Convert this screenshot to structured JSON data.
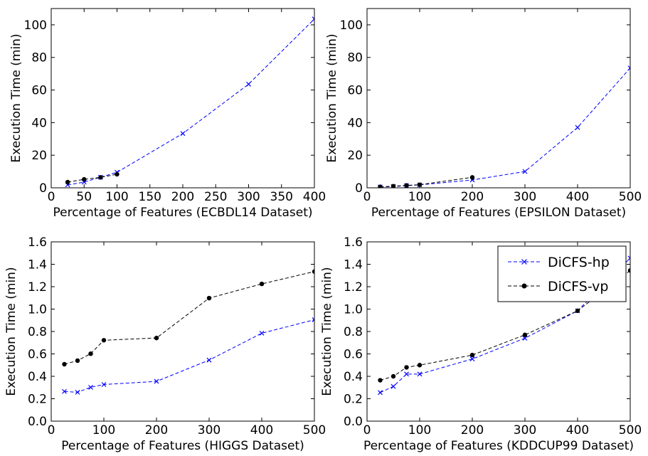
{
  "chart_data": [
    {
      "type": "line",
      "xlabel": "Percentage of Features (ECBDL14 Dataset)",
      "ylabel": "Execution Time (min)",
      "xlim": [
        0,
        400
      ],
      "ylim": [
        0,
        110
      ],
      "xticks": [
        0,
        50,
        100,
        150,
        200,
        250,
        300,
        350,
        400
      ],
      "yticks": [
        0,
        20,
        40,
        60,
        80,
        100
      ],
      "xtick_labels": [
        "0",
        "50",
        "100",
        "150",
        "200",
        "250",
        "300",
        "350",
        "400"
      ],
      "ytick_labels": [
        "0",
        "20",
        "40",
        "60",
        "80",
        "100"
      ],
      "grid": false,
      "series": [
        {
          "name": "DiCFS-hp",
          "color": "#0000ff",
          "marker": "x",
          "line": "dashed",
          "x": [
            25,
            50,
            75,
            100,
            200,
            300,
            400
          ],
          "y": [
            1.8,
            3.5,
            6.5,
            9.5,
            33.3,
            63.6,
            103.6
          ]
        },
        {
          "name": "DiCFS-vp",
          "color": "#000000",
          "marker": "circle",
          "line": "dashed",
          "x": [
            25,
            50,
            75,
            100
          ],
          "y": [
            3.5,
            5.2,
            6.4,
            8.3
          ]
        }
      ]
    },
    {
      "type": "line",
      "xlabel": "Percentage of Features (EPSILON Dataset)",
      "ylabel": "Execution Time (min)",
      "xlim": [
        0,
        500
      ],
      "ylim": [
        0,
        110
      ],
      "xticks": [
        0,
        100,
        200,
        300,
        400,
        500
      ],
      "yticks": [
        0,
        20,
        40,
        60,
        80,
        100
      ],
      "xtick_labels": [
        "0",
        "100",
        "200",
        "300",
        "400",
        "500"
      ],
      "ytick_labels": [
        "0",
        "20",
        "40",
        "60",
        "80",
        "100"
      ],
      "grid": false,
      "series": [
        {
          "name": "DiCFS-hp",
          "color": "#0000ff",
          "marker": "x",
          "line": "dashed",
          "x": [
            25,
            50,
            75,
            100,
            200,
            300,
            400,
            500
          ],
          "y": [
            0.5,
            0.8,
            1.3,
            1.8,
            4.8,
            10.0,
            37.0,
            73.5
          ]
        },
        {
          "name": "DiCFS-vp",
          "color": "#000000",
          "marker": "circle",
          "line": "dashed",
          "x": [
            25,
            50,
            75,
            100,
            200
          ],
          "y": [
            0.6,
            1.0,
            1.5,
            1.9,
            6.4
          ]
        }
      ]
    },
    {
      "type": "line",
      "xlabel": "Percentage of Features (HIGGS Dataset)",
      "ylabel": "Execution Time (min)",
      "xlim": [
        0,
        500
      ],
      "ylim": [
        0,
        1.6
      ],
      "xticks": [
        0,
        100,
        200,
        300,
        400,
        500
      ],
      "yticks": [
        0,
        0.2,
        0.4,
        0.6,
        0.8,
        1.0,
        1.2,
        1.4,
        1.6
      ],
      "xtick_labels": [
        "0",
        "100",
        "200",
        "300",
        "400",
        "500"
      ],
      "ytick_labels": [
        "0.0",
        "0.2",
        "0.4",
        "0.6",
        "0.8",
        "1.0",
        "1.2",
        "1.4",
        "1.6"
      ],
      "grid": false,
      "series": [
        {
          "name": "DiCFS-hp",
          "color": "#0000ff",
          "marker": "x",
          "line": "dashed",
          "x": [
            25,
            50,
            75,
            100,
            200,
            300,
            400,
            500
          ],
          "y": [
            0.265,
            0.258,
            0.302,
            0.327,
            0.355,
            0.545,
            0.785,
            0.905
          ]
        },
        {
          "name": "DiCFS-vp",
          "color": "#000000",
          "marker": "circle",
          "line": "dashed",
          "x": [
            25,
            50,
            75,
            100,
            200,
            300,
            400,
            500
          ],
          "y": [
            0.508,
            0.54,
            0.602,
            0.722,
            0.742,
            1.098,
            1.225,
            1.335
          ]
        }
      ]
    },
    {
      "type": "line",
      "xlabel": "Percentage of Features (KDDCUP99 Dataset)",
      "ylabel": "Execution Time (min)",
      "xlim": [
        0,
        500
      ],
      "ylim": [
        0,
        1.6
      ],
      "xticks": [
        0,
        100,
        200,
        300,
        400,
        500
      ],
      "yticks": [
        0,
        0.2,
        0.4,
        0.6,
        0.8,
        1.0,
        1.2,
        1.4,
        1.6
      ],
      "xtick_labels": [
        "0",
        "100",
        "200",
        "300",
        "400",
        "500"
      ],
      "ytick_labels": [
        "0.0",
        "0.2",
        "0.4",
        "0.6",
        "0.8",
        "1.0",
        "1.2",
        "1.4",
        "1.6"
      ],
      "grid": false,
      "legend": {
        "placement": "top-right",
        "entries": [
          "DiCFS-hp",
          "DiCFS-vp"
        ]
      },
      "series": [
        {
          "name": "DiCFS-hp",
          "color": "#0000ff",
          "marker": "x",
          "line": "dashed",
          "x": [
            25,
            50,
            75,
            100,
            200,
            300,
            400,
            500
          ],
          "y": [
            0.255,
            0.31,
            0.42,
            0.42,
            0.555,
            0.74,
            0.985,
            1.455
          ]
        },
        {
          "name": "DiCFS-vp",
          "color": "#000000",
          "marker": "circle",
          "line": "dashed",
          "x": [
            25,
            50,
            75,
            100,
            200,
            300,
            400,
            500
          ],
          "y": [
            0.365,
            0.4,
            0.48,
            0.5,
            0.59,
            0.77,
            0.985,
            1.345
          ]
        }
      ]
    }
  ]
}
